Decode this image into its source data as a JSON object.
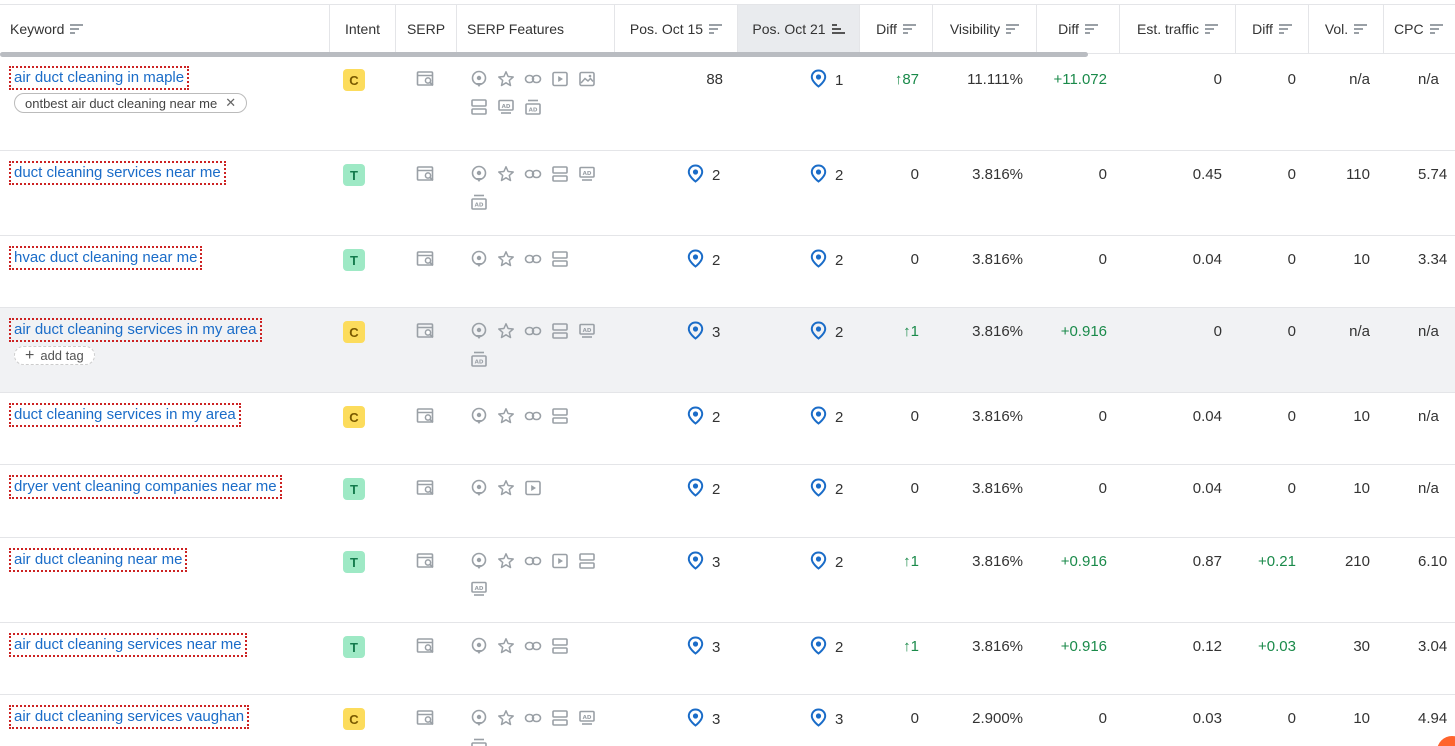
{
  "columns": {
    "keyword": "Keyword",
    "intent": "Intent",
    "serp": "SERP",
    "serp_features": "SERP Features",
    "pos1": "Pos. Oct 15",
    "pos2": "Pos. Oct 21",
    "diff1": "Diff",
    "visibility": "Visibility",
    "diff2": "Diff",
    "traffic": "Est. traffic",
    "diff3": "Diff",
    "vol": "Vol.",
    "cpc": "CPC"
  },
  "rows": [
    {
      "keyword": "air duct cleaning in maple",
      "tag": "ontbest air duct cleaning near me",
      "tag_close": "✕",
      "intent": "C",
      "features": [
        "local-pack",
        "star",
        "link",
        "video",
        "image",
        "ads-top",
        "ads-mid",
        "ads-bottom"
      ],
      "pos1": "88",
      "pos1_local": false,
      "pos2": "1",
      "diff": "↑87",
      "diff_up": true,
      "visibility": "11.111%",
      "vdiff": "+11.072",
      "vdiff_up": true,
      "traffic": "0",
      "tdiff": "0",
      "tdiff_up": false,
      "vol": "n/a",
      "cpc": "n/a"
    },
    {
      "keyword": "duct cleaning services near me",
      "intent": "T",
      "features": [
        "local-pack",
        "star",
        "link",
        "ads-top",
        "ads-mid",
        "ads-bottom"
      ],
      "pos1": "2",
      "pos1_local": true,
      "pos2": "2",
      "diff": "0",
      "diff_up": false,
      "visibility": "3.816%",
      "vdiff": "0",
      "vdiff_up": false,
      "traffic": "0.45",
      "tdiff": "0",
      "tdiff_up": false,
      "vol": "110",
      "cpc": "5.74"
    },
    {
      "keyword": "hvac duct cleaning near me",
      "intent": "T",
      "features": [
        "local-pack",
        "star",
        "link",
        "ads-top"
      ],
      "pos1": "2",
      "pos1_local": true,
      "pos2": "2",
      "diff": "0",
      "diff_up": false,
      "visibility": "3.816%",
      "vdiff": "0",
      "vdiff_up": false,
      "traffic": "0.04",
      "tdiff": "0",
      "tdiff_up": false,
      "vol": "10",
      "cpc": "3.34"
    },
    {
      "keyword": "air duct cleaning services in my area",
      "add_tag": "add tag",
      "intent": "C",
      "features": [
        "local-pack",
        "star",
        "link",
        "ads-top",
        "ads-mid",
        "ads-bottom"
      ],
      "pos1": "3",
      "pos1_local": true,
      "pos2": "2",
      "diff": "↑1",
      "diff_up": true,
      "visibility": "3.816%",
      "vdiff": "+0.916",
      "vdiff_up": true,
      "traffic": "0",
      "tdiff": "0",
      "tdiff_up": false,
      "vol": "n/a",
      "cpc": "n/a"
    },
    {
      "keyword": "duct cleaning services in my area",
      "intent": "C",
      "features": [
        "local-pack",
        "star",
        "link",
        "ads-top"
      ],
      "pos1": "2",
      "pos1_local": true,
      "pos2": "2",
      "diff": "0",
      "diff_up": false,
      "visibility": "3.816%",
      "vdiff": "0",
      "vdiff_up": false,
      "traffic": "0.04",
      "tdiff": "0",
      "tdiff_up": false,
      "vol": "10",
      "cpc": "n/a"
    },
    {
      "keyword": "dryer vent cleaning companies near me",
      "intent": "T",
      "features": [
        "local-pack",
        "star",
        "video"
      ],
      "pos1": "2",
      "pos1_local": true,
      "pos2": "2",
      "diff": "0",
      "diff_up": false,
      "visibility": "3.816%",
      "vdiff": "0",
      "vdiff_up": false,
      "traffic": "0.04",
      "tdiff": "0",
      "tdiff_up": false,
      "vol": "10",
      "cpc": "n/a"
    },
    {
      "keyword": "air duct cleaning near me",
      "intent": "T",
      "features": [
        "local-pack",
        "star",
        "link",
        "video",
        "ads-top",
        "ads-mid"
      ],
      "pos1": "3",
      "pos1_local": true,
      "pos2": "2",
      "diff": "↑1",
      "diff_up": true,
      "visibility": "3.816%",
      "vdiff": "+0.916",
      "vdiff_up": true,
      "traffic": "0.87",
      "tdiff": "+0.21",
      "tdiff_up": true,
      "vol": "210",
      "cpc": "6.10"
    },
    {
      "keyword": "air duct cleaning services near me",
      "intent": "T",
      "features": [
        "local-pack",
        "star",
        "link",
        "ads-top"
      ],
      "pos1": "3",
      "pos1_local": true,
      "pos2": "2",
      "diff": "↑1",
      "diff_up": true,
      "visibility": "3.816%",
      "vdiff": "+0.916",
      "vdiff_up": true,
      "traffic": "0.12",
      "tdiff": "+0.03",
      "tdiff_up": true,
      "vol": "30",
      "cpc": "3.04"
    },
    {
      "keyword": "air duct cleaning services vaughan",
      "intent": "C",
      "features": [
        "local-pack",
        "star",
        "link",
        "ads-top",
        "ads-mid",
        "ads-bottom"
      ],
      "pos1": "3",
      "pos1_local": true,
      "pos2": "3",
      "diff": "0",
      "diff_up": false,
      "visibility": "2.900%",
      "vdiff": "0",
      "vdiff_up": false,
      "traffic": "0.03",
      "tdiff": "0",
      "tdiff_up": false,
      "vol": "10",
      "cpc": "4.94"
    }
  ],
  "colors": {
    "link": "#1a6cc8",
    "up": "#1a8a4a",
    "local": "#1a6cc8",
    "icon": "#9aa0a6"
  }
}
